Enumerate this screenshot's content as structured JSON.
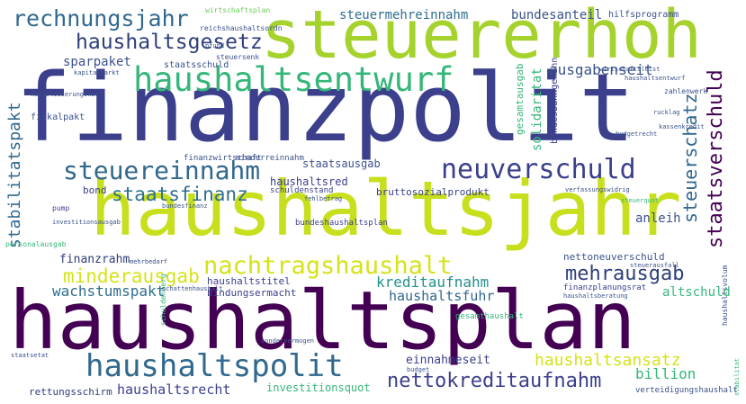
{
  "palette": {
    "dark_purple": "#440154",
    "indigo": "#3b3f8c",
    "blue": "#31688e",
    "teal": "#21918c",
    "green": "#35b779",
    "lime": "#a5d22d",
    "yellow": "#d6e21a"
  },
  "words": [
    {
      "text": "haushaltsplan",
      "color": "#440154"
    },
    {
      "text": "finanzpolit",
      "color": "#3b3f8c"
    },
    {
      "text": "haushaltsjahr",
      "color": "#c8df1e"
    },
    {
      "text": "steuererhoh",
      "color": "#a5d22d"
    },
    {
      "text": "haushaltsentwurf",
      "color": "#35b779"
    },
    {
      "text": "neuverschuld",
      "color": "#3b3f8c"
    },
    {
      "text": "steuereinnahm",
      "color": "#31688e"
    },
    {
      "text": "haushaltspolit",
      "color": "#31688e"
    },
    {
      "text": "nachtragshaushalt",
      "color": "#d6e21a"
    },
    {
      "text": "rechnungsjahr",
      "color": "#31688e"
    },
    {
      "text": "haushaltsgesetz",
      "color": "#2e3f7a"
    },
    {
      "text": "nettokreditaufnahm",
      "color": "#3b3f8c"
    },
    {
      "text": "mehrausgab",
      "color": "#2e3f7a"
    },
    {
      "text": "staatsfinanz",
      "color": "#2e6f8e"
    },
    {
      "text": "minderausgab",
      "color": "#d6e21a"
    },
    {
      "text": "haushaltsansatz",
      "color": "#d6e21a"
    },
    {
      "text": "staatsverschuld",
      "color": "#440154"
    },
    {
      "text": "steuerschatz",
      "color": "#31688e"
    },
    {
      "text": "stabilitatspakt",
      "color": "#31688e"
    },
    {
      "text": "steuermehreinnahm",
      "color": "#2e6f8e"
    },
    {
      "text": "bundesanteil",
      "color": "#3b528b"
    },
    {
      "text": "ausgabenseit",
      "color": "#3b528b"
    },
    {
      "text": "sparpaket",
      "color": "#3b528b"
    },
    {
      "text": "wachstumspakt",
      "color": "#2e6f8e"
    },
    {
      "text": "kreditaufnahm",
      "color": "#21918c"
    },
    {
      "text": "haushaltsfuhr",
      "color": "#31688e"
    },
    {
      "text": "altschuld",
      "color": "#35b779"
    },
    {
      "text": "billion",
      "color": "#35b779"
    },
    {
      "text": "haushaltsrecht",
      "color": "#3b3f8c"
    },
    {
      "text": "rettungsschirm",
      "color": "#2e3f7a"
    },
    {
      "text": "einnahmeseit",
      "color": "#3b3f8c"
    },
    {
      "text": "investitionsquot",
      "color": "#35b779"
    },
    {
      "text": "verteidigungshaushalt",
      "color": "#3b528b"
    },
    {
      "text": "finanzrahm",
      "color": "#2e3f7a"
    },
    {
      "text": "haushaltstitel",
      "color": "#3b3f8c"
    },
    {
      "text": "bindungsermacht",
      "color": "#3b3f8c"
    },
    {
      "text": "nettoneuverschuld",
      "color": "#3b528b"
    },
    {
      "text": "anleih",
      "color": "#3b528b"
    },
    {
      "text": "staatsausgab",
      "color": "#3b528b"
    },
    {
      "text": "haushaltsred",
      "color": "#3b3f8c"
    },
    {
      "text": "schuldenstand",
      "color": "#3b3f8c"
    },
    {
      "text": "bruttosozialprodukt",
      "color": "#3b3f8c"
    },
    {
      "text": "bundeshaushaltsplan",
      "color": "#3b3f8c"
    },
    {
      "text": "finanzwirtschaft",
      "color": "#3b528b"
    },
    {
      "text": "minderreinnahm",
      "color": "#3b528b"
    },
    {
      "text": "bond",
      "color": "#3b3f8c"
    },
    {
      "text": "solidaritat",
      "color": "#35b779"
    },
    {
      "text": "gesamtausgab",
      "color": "#35b779"
    },
    {
      "text": "bundesbankgewinn",
      "color": "#3b3f8c"
    },
    {
      "text": "hilfsprogramm",
      "color": "#3b528b"
    },
    {
      "text": "staatsschuld",
      "color": "#3b528b"
    },
    {
      "text": "fiskalpakt",
      "color": "#3b528b"
    },
    {
      "text": "steuersenk",
      "color": "#3b528b"
    },
    {
      "text": "wirtschaftsplan",
      "color": "#6ccd5a"
    },
    {
      "text": "reichshaushaltsordn",
      "color": "#3b528b"
    },
    {
      "text": "finanzplanungsrat",
      "color": "#3b3f8c"
    },
    {
      "text": "gesamthaushalt",
      "color": "#35b779"
    },
    {
      "text": "haushaltsvolum",
      "color": "#3b528b"
    },
    {
      "text": "zahlenwerk",
      "color": "#3b528b"
    },
    {
      "text": "konsolidierungskur",
      "color": "#3b528b"
    },
    {
      "text": "mehrbedarf",
      "color": "#3b528b"
    },
    {
      "text": "personalausgab",
      "color": "#35b779"
    },
    {
      "text": "bundesfinanz",
      "color": "#3b528b"
    },
    {
      "text": "fehlbetrag",
      "color": "#3b528b"
    },
    {
      "text": "pump",
      "color": "#3b3f8c"
    },
    {
      "text": "investitionsausgab",
      "color": "#3b528b"
    },
    {
      "text": "rucklag",
      "color": "#3b528b"
    },
    {
      "text": "budgetrecht",
      "color": "#3b528b"
    },
    {
      "text": "wirtschaftsleist",
      "color": "#3b528b"
    },
    {
      "text": "haushaltsberatung",
      "color": "#3b528b"
    },
    {
      "text": "haushaltsentwurf",
      "color": "#3b528b"
    },
    {
      "text": "kassenkredit",
      "color": "#3b528b"
    },
    {
      "text": "schuldenberg",
      "color": "#35b779"
    },
    {
      "text": "staatsetat",
      "color": "#3b528b"
    },
    {
      "text": "sondervermogen",
      "color": "#3b528b"
    },
    {
      "text": "schattenhaushalt",
      "color": "#3b528b"
    },
    {
      "text": "pfund",
      "color": "#3b528b"
    },
    {
      "text": "rucklag",
      "color": "#3b528b"
    },
    {
      "text": "kapitalmarkt",
      "color": "#3b528b"
    },
    {
      "text": "sondervermogen",
      "color": "#3b528b"
    },
    {
      "text": "verfassungswidrig",
      "color": "#3b528b"
    },
    {
      "text": "steuerausfall",
      "color": "#3b528b"
    },
    {
      "text": "steuerquot",
      "color": "#35b779"
    },
    {
      "text": "budget",
      "color": "#3b528b"
    },
    {
      "text": "stabilitat",
      "color": "#35b779"
    }
  ]
}
